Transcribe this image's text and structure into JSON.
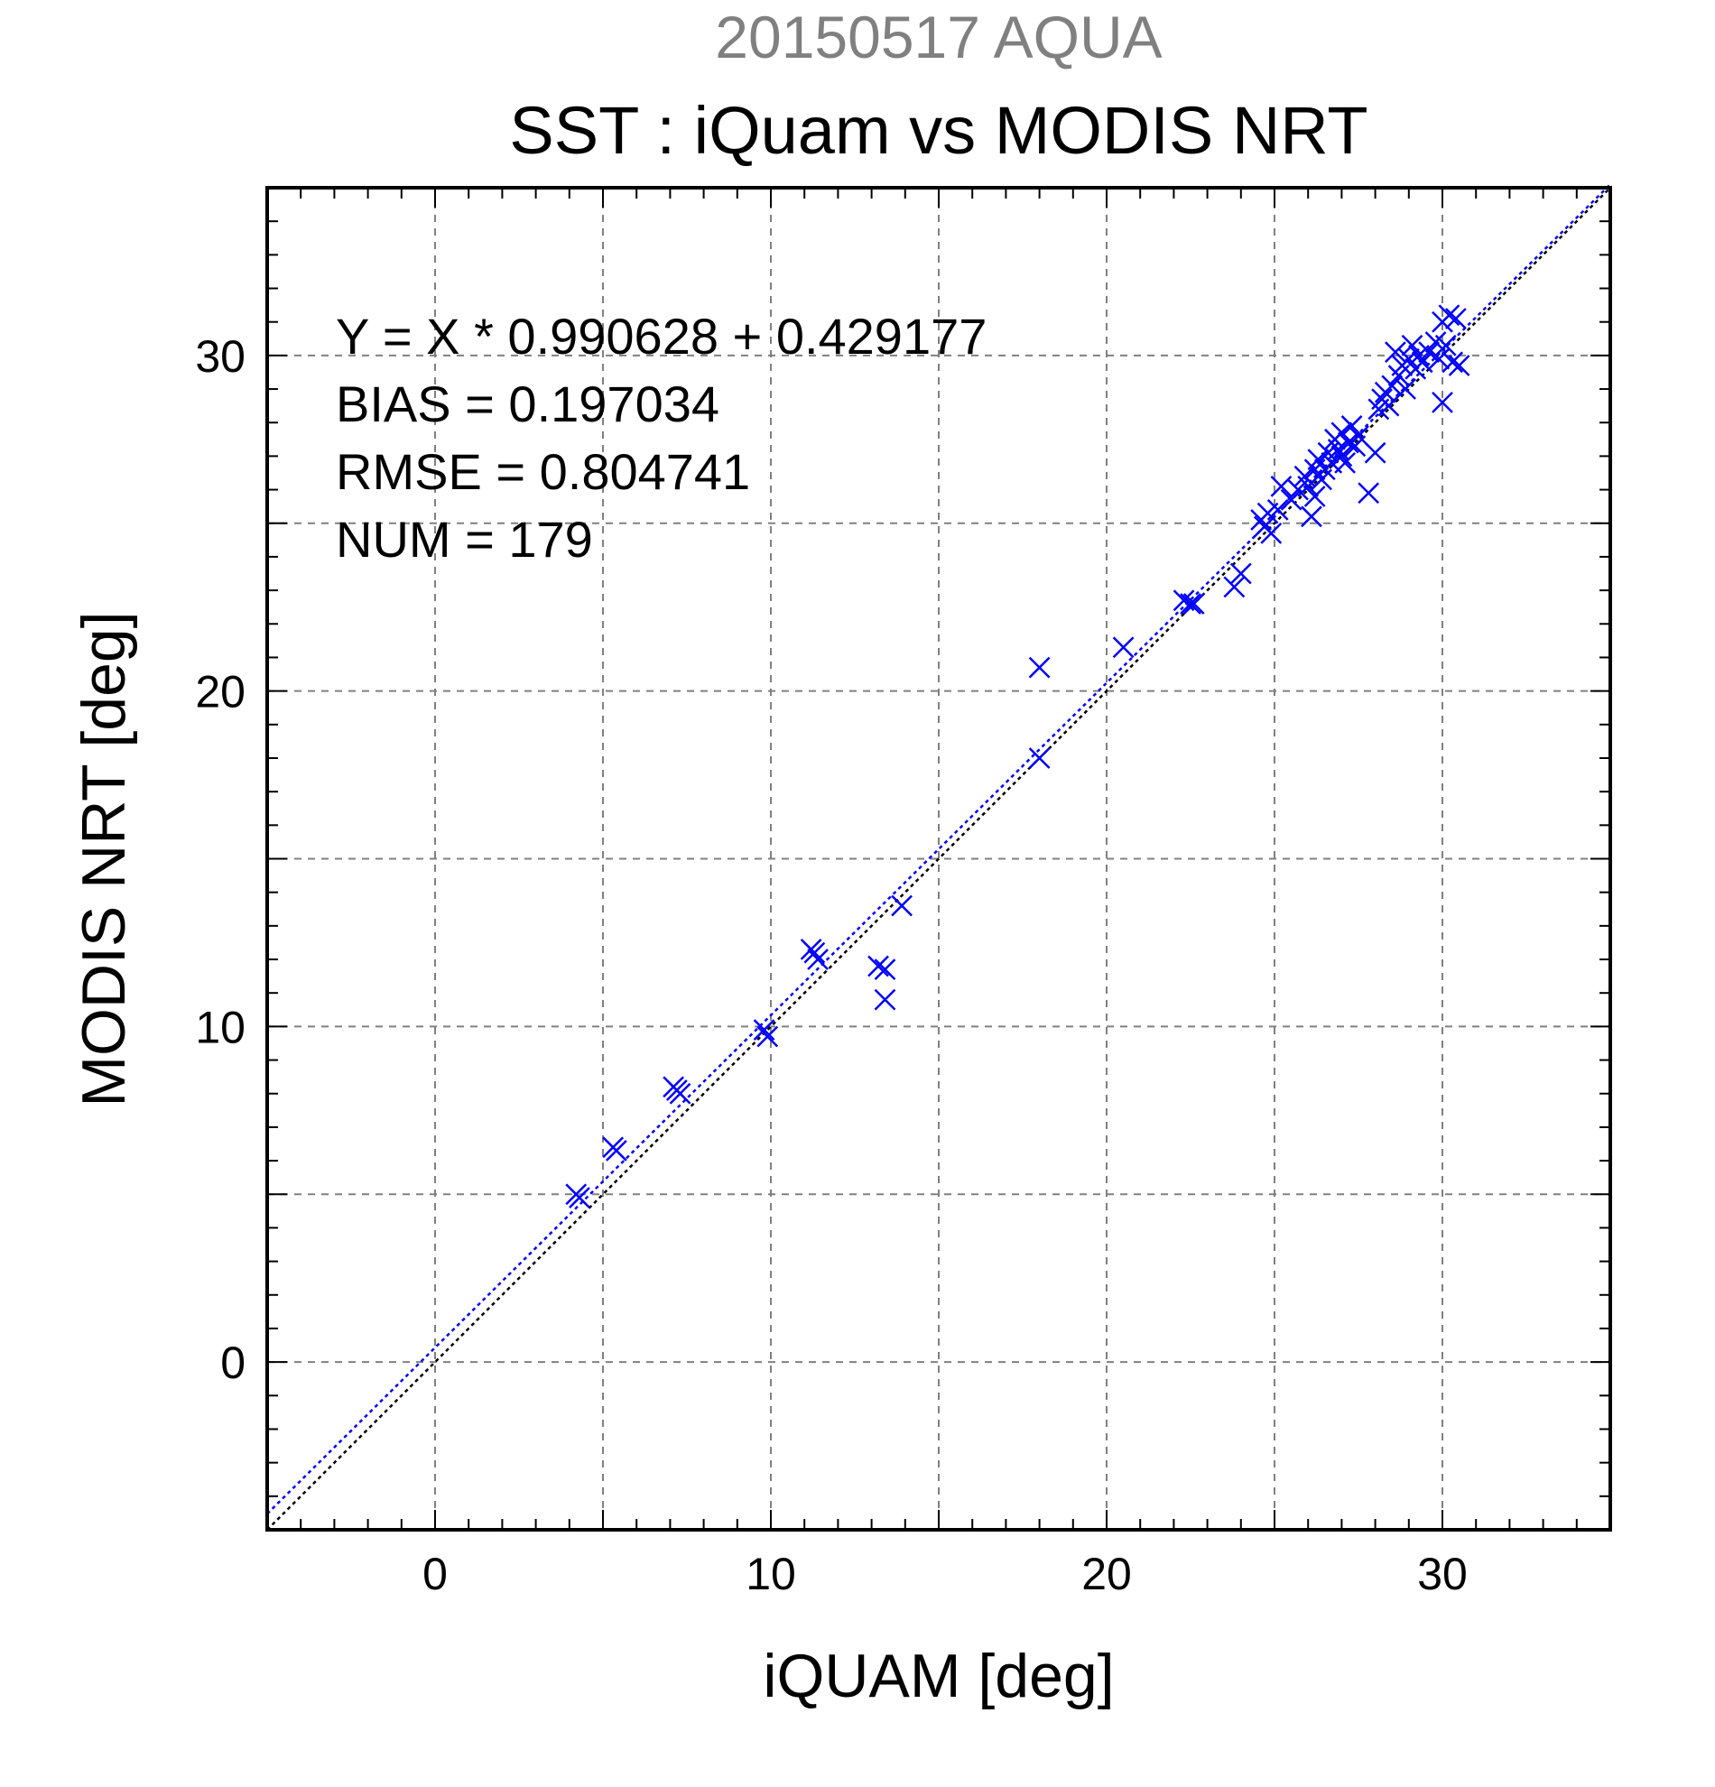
{
  "header": {
    "date_label": "20150517 AQUA",
    "title": "SST : iQuam vs MODIS NRT"
  },
  "stats": {
    "equation": "Y = X * 0.990628 + 0.429177",
    "bias": "BIAS = 0.197034",
    "rmse": "RMSE = 0.804741",
    "num": "NUM = 179"
  },
  "chart_data": {
    "type": "scatter",
    "title": "SST : iQuam vs MODIS NRT",
    "subtitle": "20150517 AQUA",
    "xlabel": "iQUAM [deg]",
    "ylabel": "MODIS NRT [deg]",
    "xlim": [
      -5,
      35
    ],
    "ylim": [
      -5,
      35
    ],
    "xticks": [
      0,
      10,
      20,
      30
    ],
    "yticks": [
      0,
      10,
      20,
      30
    ],
    "grid": true,
    "grid_step": 5,
    "marker": "x",
    "colors": {
      "points": "#0000ff",
      "fit_line": "#0000ff",
      "identity_line": "#000000",
      "grid": "#808080"
    },
    "fit": {
      "slope": 0.990628,
      "intercept": 0.429177
    },
    "identity_line": true,
    "series": [
      {
        "points": [
          [
            4.2,
            5.0
          ],
          [
            4.3,
            4.9
          ],
          [
            5.3,
            6.4
          ],
          [
            5.4,
            6.3
          ],
          [
            7.1,
            8.2
          ],
          [
            7.2,
            8.1
          ],
          [
            7.3,
            8.0
          ],
          [
            9.8,
            9.9
          ],
          [
            9.9,
            9.7
          ],
          [
            11.2,
            12.3
          ],
          [
            11.3,
            12.2
          ],
          [
            11.4,
            12.0
          ],
          [
            13.2,
            11.8
          ],
          [
            13.4,
            11.7
          ],
          [
            13.4,
            10.8
          ],
          [
            13.9,
            13.6
          ],
          [
            18.0,
            20.7
          ],
          [
            18.0,
            18.0
          ],
          [
            20.5,
            21.3
          ],
          [
            22.3,
            22.7
          ],
          [
            22.5,
            22.6
          ],
          [
            22.6,
            22.6
          ],
          [
            23.8,
            23.1
          ],
          [
            24.0,
            23.5
          ],
          [
            24.6,
            25.1
          ],
          [
            24.7,
            24.9
          ],
          [
            24.8,
            25.3
          ],
          [
            24.9,
            24.7
          ],
          [
            25.1,
            25.4
          ],
          [
            25.2,
            26.1
          ],
          [
            25.5,
            25.7
          ],
          [
            25.7,
            26.0
          ],
          [
            25.9,
            26.4
          ],
          [
            26.0,
            26.1
          ],
          [
            26.1,
            25.2
          ],
          [
            26.2,
            26.6
          ],
          [
            26.2,
            25.8
          ],
          [
            26.3,
            26.9
          ],
          [
            26.4,
            26.3
          ],
          [
            26.5,
            26.6
          ],
          [
            26.6,
            27.1
          ],
          [
            26.7,
            26.8
          ],
          [
            26.8,
            27.5
          ],
          [
            26.9,
            27.2
          ],
          [
            27.0,
            27.0
          ],
          [
            27.0,
            27.7
          ],
          [
            27.1,
            26.8
          ],
          [
            27.2,
            27.4
          ],
          [
            27.3,
            27.9
          ],
          [
            27.4,
            27.3
          ],
          [
            27.5,
            27.6
          ],
          [
            27.8,
            25.9
          ],
          [
            28.0,
            27.1
          ],
          [
            28.1,
            28.4
          ],
          [
            28.2,
            28.7
          ],
          [
            28.3,
            28.9
          ],
          [
            28.4,
            28.5
          ],
          [
            28.5,
            29.1
          ],
          [
            28.6,
            30.1
          ],
          [
            28.7,
            29.4
          ],
          [
            28.8,
            29.7
          ],
          [
            28.9,
            29.0
          ],
          [
            29.0,
            29.9
          ],
          [
            29.1,
            30.3
          ],
          [
            29.2,
            29.6
          ],
          [
            29.3,
            30.0
          ],
          [
            29.4,
            29.8
          ],
          [
            29.6,
            30.1
          ],
          [
            29.8,
            30.4
          ],
          [
            29.9,
            29.9
          ],
          [
            30.0,
            31.0
          ],
          [
            30.0,
            28.6
          ],
          [
            30.1,
            30.3
          ],
          [
            30.2,
            31.2
          ],
          [
            30.3,
            29.8
          ],
          [
            30.4,
            31.1
          ],
          [
            30.5,
            29.7
          ]
        ]
      }
    ]
  }
}
